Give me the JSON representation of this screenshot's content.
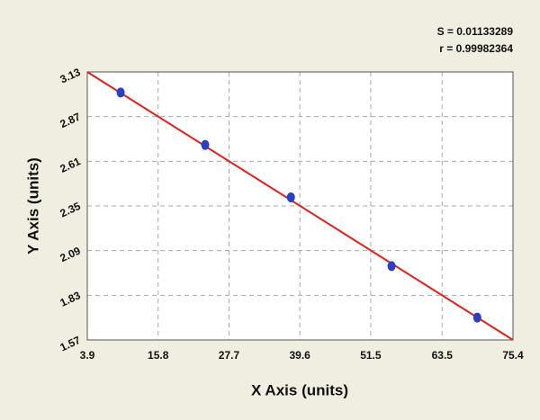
{
  "chart_data": {
    "type": "scatter",
    "annotations": [
      "S = 0.01133289",
      "r = 0.99982364"
    ],
    "xlabel": "X Axis (units)",
    "ylabel": "Y Axis (units)",
    "series": [
      {
        "color": "#2b3fc4",
        "x": [
          9.5,
          23.7,
          38.1,
          55.0,
          69.4
        ],
        "values": [
          3.01,
          2.705,
          2.4,
          2.0,
          1.7
        ]
      }
    ],
    "fit_line": {
      "color": "#e0201b",
      "x": [
        3.9,
        75.4
      ],
      "values": [
        3.13,
        1.57
      ]
    },
    "xlim": [
      3.9,
      75.4
    ],
    "xticks": [
      3.9,
      15.8,
      27.7,
      39.6,
      51.5,
      63.5,
      75.4
    ],
    "ylim": [
      1.57,
      3.13
    ],
    "yticks": [
      1.57,
      1.83,
      2.09,
      2.35,
      2.61,
      2.87,
      3.13
    ],
    "grid": true
  }
}
